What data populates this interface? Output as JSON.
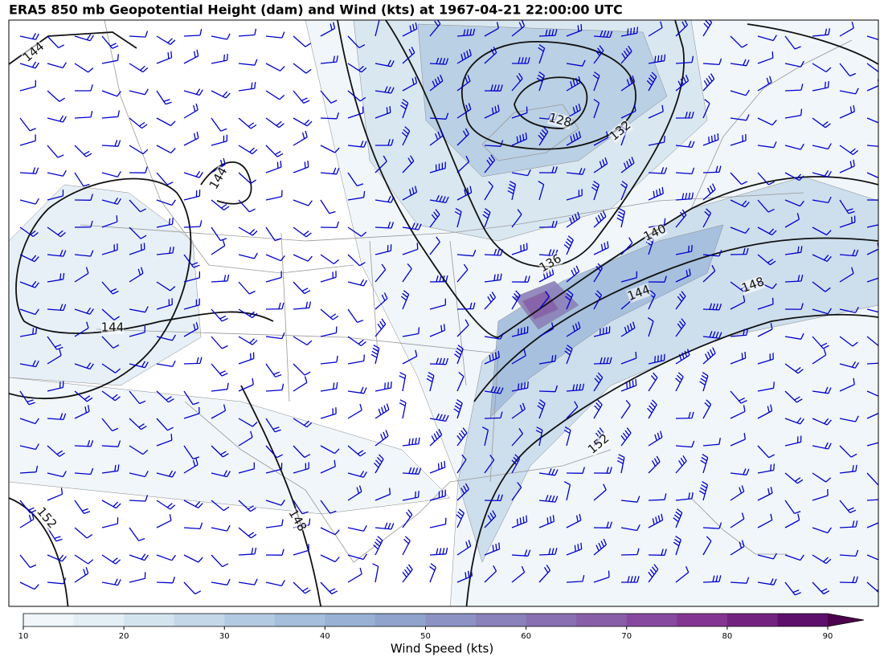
{
  "title": "ERA5 850 mb Geopotential Height (dam) and Wind (kts) at 1967-04-21 22:00:00 UTC",
  "map": {
    "contour_labels": [
      "144",
      "144",
      "128",
      "132",
      "136",
      "140",
      "144",
      "148",
      "144",
      "152",
      "152",
      "148"
    ]
  },
  "colorbar": {
    "label": "Wind Speed (kts)",
    "ticks": [
      10,
      20,
      30,
      40,
      50,
      60,
      70,
      80,
      90
    ],
    "bounds": [
      10,
      15,
      20,
      25,
      30,
      35,
      40,
      45,
      50,
      55,
      60,
      65,
      70,
      75,
      80,
      85,
      90
    ],
    "colors": [
      "#f0f6fa",
      "#e3eef5",
      "#d4e4ef",
      "#c4d7e8",
      "#b3cbe2",
      "#a4bedb",
      "#98b1d5",
      "#90a3cc",
      "#8c93c4",
      "#8a82bb",
      "#8970b2",
      "#885ea9",
      "#86499f",
      "#843593",
      "#73237f",
      "#5d0f6b"
    ],
    "extend_color": "#4d004b"
  }
}
